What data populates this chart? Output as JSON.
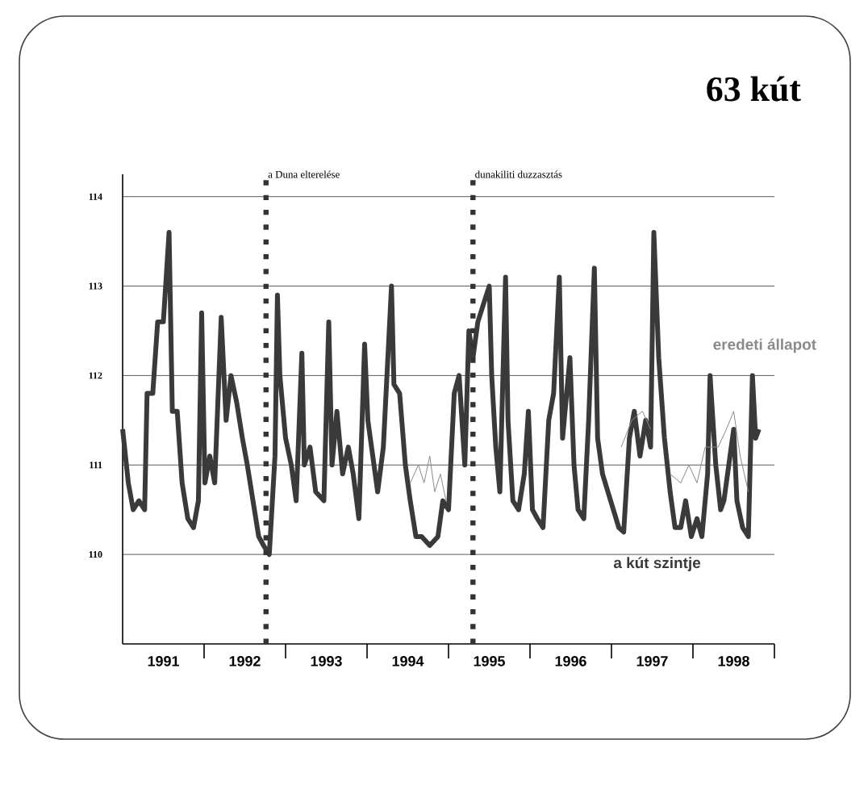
{
  "chart_data": {
    "type": "line",
    "title": "63 kút",
    "xlim": [
      1991,
      1999
    ],
    "ylim": [
      109,
      114.25
    ],
    "xticks": [
      {
        "value": 1991.5,
        "label": "1991"
      },
      {
        "value": 1992,
        "label": null
      },
      {
        "value": 1992.5,
        "label": "1992"
      },
      {
        "value": 1993,
        "label": null
      },
      {
        "value": 1993.5,
        "label": "1993"
      },
      {
        "value": 1994,
        "label": null
      },
      {
        "value": 1994.5,
        "label": "1994"
      },
      {
        "value": 1995,
        "label": null
      },
      {
        "value": 1995.5,
        "label": "1995"
      },
      {
        "value": 1996,
        "label": null
      },
      {
        "value": 1996.5,
        "label": "1996"
      },
      {
        "value": 1997,
        "label": null
      },
      {
        "value": 1997.5,
        "label": "1997"
      },
      {
        "value": 1998,
        "label": null
      },
      {
        "value": 1998.5,
        "label": "1998"
      },
      {
        "value": 1999,
        "label": null
      }
    ],
    "yticks": [
      110,
      111,
      112,
      113,
      114
    ],
    "grid": "y",
    "series": [
      {
        "name": "a kút szintje",
        "color": "#3a3a3a",
        "x": [
          1991.0,
          1991.07,
          1991.13,
          1991.2,
          1991.27,
          1991.3,
          1991.37,
          1991.43,
          1991.5,
          1991.57,
          1991.61,
          1991.67,
          1991.73,
          1991.8,
          1991.87,
          1991.93,
          1991.97,
          1992.01,
          1992.07,
          1992.13,
          1992.21,
          1992.27,
          1992.33,
          1992.4,
          1992.47,
          1992.53,
          1992.6,
          1992.67,
          1992.73,
          1992.8,
          1992.87,
          1992.9,
          1992.93,
          1993.0,
          1993.07,
          1993.13,
          1993.2,
          1993.23,
          1993.3,
          1993.37,
          1993.47,
          1993.53,
          1993.57,
          1993.63,
          1993.7,
          1993.77,
          1993.83,
          1993.9,
          1993.97,
          1994.01,
          1994.07,
          1994.13,
          1994.2,
          1994.3,
          1994.33,
          1994.4,
          1994.47,
          1994.53,
          1994.6,
          1994.67,
          1994.77,
          1994.87,
          1994.93,
          1995.0,
          1995.07,
          1995.13,
          1995.2,
          1995.25,
          1995.3,
          1995.36,
          1995.43,
          1995.5,
          1995.53,
          1995.58,
          1995.63,
          1995.7,
          1995.73,
          1995.79,
          1995.86,
          1995.93,
          1995.98,
          1996.03,
          1996.09,
          1996.16,
          1996.23,
          1996.29,
          1996.36,
          1996.4,
          1996.49,
          1996.54,
          1996.59,
          1996.66,
          1996.72,
          1996.79,
          1996.83,
          1996.89,
          1996.99,
          1997.09,
          1997.15,
          1997.22,
          1997.28,
          1997.35,
          1997.42,
          1997.48,
          1997.52,
          1997.58,
          1997.65,
          1997.72,
          1997.78,
          1997.85,
          1997.91,
          1997.98,
          1998.05,
          1998.11,
          1998.18,
          1998.21,
          1998.28,
          1998.34,
          1998.38,
          1998.44,
          1998.5,
          1998.54,
          1998.61,
          1998.68,
          1998.73,
          1998.77,
          1998.81
        ],
        "values": [
          111.4,
          110.8,
          110.5,
          110.6,
          110.5,
          111.8,
          111.8,
          112.6,
          112.6,
          113.6,
          111.6,
          111.6,
          110.8,
          110.4,
          110.3,
          110.6,
          112.7,
          110.8,
          111.1,
          110.8,
          112.65,
          111.5,
          112.0,
          111.7,
          111.3,
          111.0,
          110.6,
          110.2,
          110.1,
          110.0,
          111.1,
          112.9,
          112.0,
          111.3,
          111.0,
          110.6,
          112.25,
          111.0,
          111.2,
          110.7,
          110.6,
          112.6,
          111.0,
          111.6,
          110.9,
          111.2,
          110.9,
          110.4,
          112.35,
          111.5,
          111.1,
          110.7,
          111.2,
          113.0,
          111.9,
          111.8,
          111.0,
          110.6,
          110.2,
          110.2,
          110.1,
          110.2,
          110.6,
          110.5,
          111.8,
          112.0,
          111.0,
          112.5,
          112.2,
          112.6,
          112.8,
          113.0,
          112.0,
          111.2,
          110.7,
          113.1,
          111.5,
          110.6,
          110.5,
          110.9,
          111.6,
          110.5,
          110.4,
          110.3,
          111.5,
          111.8,
          113.1,
          111.3,
          112.2,
          111.0,
          110.5,
          110.4,
          111.5,
          113.2,
          111.3,
          110.9,
          110.6,
          110.3,
          110.25,
          111.3,
          111.6,
          111.1,
          111.5,
          111.2,
          113.6,
          112.2,
          111.3,
          110.7,
          110.3,
          110.3,
          110.6,
          110.2,
          110.4,
          110.2,
          110.9,
          112.0,
          111.0,
          110.5,
          110.6,
          111.0,
          111.4,
          110.6,
          110.3,
          110.2,
          112.0,
          111.3,
          111.4
        ]
      },
      {
        "name": "eredeti állapot",
        "color": "#8a8a8a",
        "x": [
          1994.53,
          1994.63,
          1994.7,
          1994.77,
          1994.83,
          1994.9,
          1994.97,
          1996.0,
          1997.12,
          1997.25,
          1997.38,
          1997.48,
          1997.6,
          1997.72,
          1997.85,
          1997.95,
          1998.05,
          1998.15,
          1998.31,
          1998.41,
          1998.5,
          1998.58,
          1998.68
        ],
        "values": [
          110.8,
          111.0,
          110.8,
          111.1,
          110.7,
          110.9,
          110.6,
          null,
          111.2,
          111.5,
          111.6,
          111.4,
          null,
          110.9,
          110.8,
          111.0,
          110.8,
          111.2,
          111.2,
          111.4,
          111.6,
          111.1,
          110.7
        ]
      }
    ],
    "ref_lines": [
      {
        "axis": "x",
        "value": 1992.76,
        "label": "a Duna elterelése",
        "color": "#333333",
        "line_style": "dotted"
      },
      {
        "axis": "x",
        "value": 1995.3,
        "label": "dunakiliti duzzasztás",
        "color": "#333333",
        "line_style": "dotted"
      }
    ]
  }
}
